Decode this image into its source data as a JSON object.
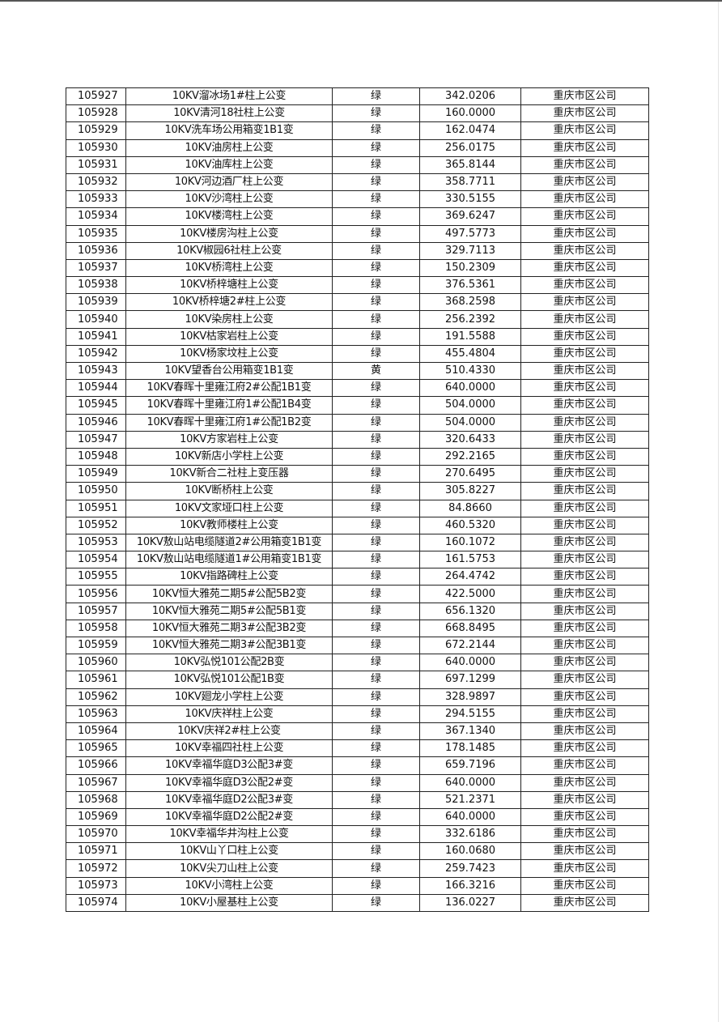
{
  "table": {
    "rows": [
      [
        "105927",
        "10KV溜冰场1#柱上公变",
        "绿",
        "342.0206",
        "重庆市区公司"
      ],
      [
        "105928",
        "10KV清河18社柱上公变",
        "绿",
        "160.0000",
        "重庆市区公司"
      ],
      [
        "105929",
        "10KV洗车场公用箱变1B1变",
        "绿",
        "162.0474",
        "重庆市区公司"
      ],
      [
        "105930",
        "10KV油房柱上公变",
        "绿",
        "256.0175",
        "重庆市区公司"
      ],
      [
        "105931",
        "10KV油库柱上公变",
        "绿",
        "365.8144",
        "重庆市区公司"
      ],
      [
        "105932",
        "10KV河边酒厂柱上公变",
        "绿",
        "358.7711",
        "重庆市区公司"
      ],
      [
        "105933",
        "10KV沙湾柱上公变",
        "绿",
        "330.5155",
        "重庆市区公司"
      ],
      [
        "105934",
        "10KV楼湾柱上公变",
        "绿",
        "369.6247",
        "重庆市区公司"
      ],
      [
        "105935",
        "10KV楼房沟柱上公变",
        "绿",
        "497.5773",
        "重庆市区公司"
      ],
      [
        "105936",
        "10KV椒园6社柱上公变",
        "绿",
        "329.7113",
        "重庆市区公司"
      ],
      [
        "105937",
        "10KV桥湾柱上公变",
        "绿",
        "150.2309",
        "重庆市区公司"
      ],
      [
        "105938",
        "10KV桥梓塘柱上公变",
        "绿",
        "376.5361",
        "重庆市区公司"
      ],
      [
        "105939",
        "10KV桥梓塘2#柱上公变",
        "绿",
        "368.2598",
        "重庆市区公司"
      ],
      [
        "105940",
        "10KV染房柱上公变",
        "绿",
        "256.2392",
        "重庆市区公司"
      ],
      [
        "105941",
        "10KV枯家岩柱上公变",
        "绿",
        "191.5588",
        "重庆市区公司"
      ],
      [
        "105942",
        "10KV杨家坟柱上公变",
        "绿",
        "455.4804",
        "重庆市区公司"
      ],
      [
        "105943",
        "10KV望香台公用箱变1B1变",
        "黄",
        "510.4330",
        "重庆市区公司"
      ],
      [
        "105944",
        "10KV春晖十里雍江府2#公配1B1变",
        "绿",
        "640.0000",
        "重庆市区公司"
      ],
      [
        "105945",
        "10KV春晖十里雍江府1#公配1B4变",
        "绿",
        "504.0000",
        "重庆市区公司"
      ],
      [
        "105946",
        "10KV春晖十里雍江府1#公配1B2变",
        "绿",
        "504.0000",
        "重庆市区公司"
      ],
      [
        "105947",
        "10KV方家岩柱上公变",
        "绿",
        "320.6433",
        "重庆市区公司"
      ],
      [
        "105948",
        "10KV新店小学柱上公变",
        "绿",
        "292.2165",
        "重庆市区公司"
      ],
      [
        "105949",
        "10KV新合二社柱上变压器",
        "绿",
        "270.6495",
        "重庆市区公司"
      ],
      [
        "105950",
        "10KV断桥柱上公变",
        "绿",
        "305.8227",
        "重庆市区公司"
      ],
      [
        "105951",
        "10KV文家垭口柱上公变",
        "绿",
        "84.8660",
        "重庆市区公司"
      ],
      [
        "105952",
        "10KV教师楼柱上公变",
        "绿",
        "460.5320",
        "重庆市区公司"
      ],
      [
        "105953",
        "10KV敖山站电缆隧道2#公用箱变1B1变",
        "绿",
        "160.1072",
        "重庆市区公司"
      ],
      [
        "105954",
        "10KV敖山站电缆隧道1#公用箱变1B1变",
        "绿",
        "161.5753",
        "重庆市区公司"
      ],
      [
        "105955",
        "10KV指路碑柱上公变",
        "绿",
        "264.4742",
        "重庆市区公司"
      ],
      [
        "105956",
        "10KV恒大雅苑二期5#公配5B2变",
        "绿",
        "422.5000",
        "重庆市区公司"
      ],
      [
        "105957",
        "10KV恒大雅苑二期5#公配5B1变",
        "绿",
        "656.1320",
        "重庆市区公司"
      ],
      [
        "105958",
        "10KV恒大雅苑二期3#公配3B2变",
        "绿",
        "668.8495",
        "重庆市区公司"
      ],
      [
        "105959",
        "10KV恒大雅苑二期3#公配3B1变",
        "绿",
        "672.2144",
        "重庆市区公司"
      ],
      [
        "105960",
        "10KV弘悦101公配2B变",
        "绿",
        "640.0000",
        "重庆市区公司"
      ],
      [
        "105961",
        "10KV弘悦101公配1B变",
        "绿",
        "697.1299",
        "重庆市区公司"
      ],
      [
        "105962",
        "10KV廻龙小学柱上公变",
        "绿",
        "328.9897",
        "重庆市区公司"
      ],
      [
        "105963",
        "10KV庆祥柱上公变",
        "绿",
        "294.5155",
        "重庆市区公司"
      ],
      [
        "105964",
        "10KV庆祥2#柱上公变",
        "绿",
        "367.1340",
        "重庆市区公司"
      ],
      [
        "105965",
        "10KV幸福四社柱上公变",
        "绿",
        "178.1485",
        "重庆市区公司"
      ],
      [
        "105966",
        "10KV幸福华庭D3公配3#变",
        "绿",
        "659.7196",
        "重庆市区公司"
      ],
      [
        "105967",
        "10KV幸福华庭D3公配2#变",
        "绿",
        "640.0000",
        "重庆市区公司"
      ],
      [
        "105968",
        "10KV幸福华庭D2公配3#变",
        "绿",
        "521.2371",
        "重庆市区公司"
      ],
      [
        "105969",
        "10KV幸福华庭D2公配2#变",
        "绿",
        "640.0000",
        "重庆市区公司"
      ],
      [
        "105970",
        "10KV幸福华井沟柱上公变",
        "绿",
        "332.6186",
        "重庆市区公司"
      ],
      [
        "105971",
        "10KV山丫口柱上公变",
        "绿",
        "160.0680",
        "重庆市区公司"
      ],
      [
        "105972",
        "10KV尖刀山柱上公变",
        "绿",
        "259.7423",
        "重庆市区公司"
      ],
      [
        "105973",
        "10KV小湾柱上公变",
        "绿",
        "166.3216",
        "重庆市区公司"
      ],
      [
        "105974",
        "10KV小屋基柱上公变",
        "绿",
        "136.0227",
        "重庆市区公司"
      ]
    ]
  }
}
